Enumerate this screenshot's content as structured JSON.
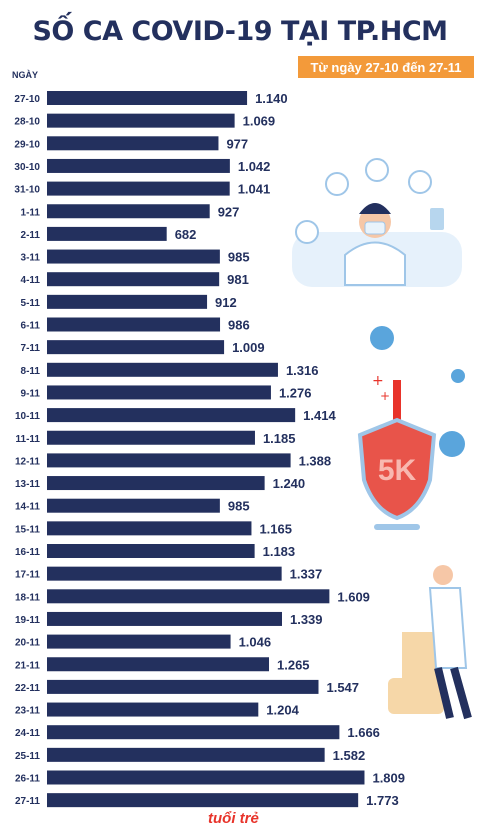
{
  "title": "SỐ CA COVID-19 TẠI TP.HCM",
  "subtitle": "Từ ngày 27-10 đến 27-11",
  "logo_text": "tuổi trẻ",
  "chart_data": {
    "type": "bar",
    "orientation": "horizontal",
    "category_header": "NGÀY",
    "categories": [
      "27-10",
      "28-10",
      "29-10",
      "30-10",
      "31-10",
      "1-11",
      "2-11",
      "3-11",
      "4-11",
      "5-11",
      "6-11",
      "7-11",
      "8-11",
      "9-11",
      "10-11",
      "11-11",
      "12-11",
      "13-11",
      "14-11",
      "15-11",
      "16-11",
      "17-11",
      "18-11",
      "19-11",
      "20-11",
      "21-11",
      "22-11",
      "23-11",
      "24-11",
      "25-11",
      "26-11",
      "27-11"
    ],
    "values": [
      1140,
      1069,
      977,
      1042,
      1041,
      927,
      682,
      985,
      981,
      912,
      986,
      1009,
      1316,
      1276,
      1414,
      1185,
      1388,
      1240,
      985,
      1165,
      1183,
      1337,
      1609,
      1339,
      1046,
      1265,
      1547,
      1204,
      1666,
      1582,
      1809,
      1773
    ],
    "value_labels": [
      "1.140",
      "1.069",
      "977",
      "1.042",
      "1.041",
      "927",
      "682",
      "985",
      "981",
      "912",
      "986",
      "1.009",
      "1.316",
      "1.276",
      "1.414",
      "1.185",
      "1.388",
      "1.240",
      "985",
      "1.165",
      "1.183",
      "1.337",
      "1.609",
      "1.339",
      "1.046",
      "1.265",
      "1.547",
      "1.204",
      "1.666",
      "1.582",
      "1.809",
      "1.773"
    ],
    "bar_color": "#23305e",
    "label_color": "#23305e",
    "grid": false,
    "legend": "none"
  }
}
